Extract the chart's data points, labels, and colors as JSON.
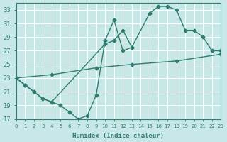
{
  "xlabel": "Humidex (Indice chaleur)",
  "xlim": [
    0,
    23
  ],
  "ylim": [
    17,
    34
  ],
  "yticks": [
    17,
    19,
    21,
    23,
    25,
    27,
    29,
    31,
    33
  ],
  "xticks": [
    0,
    1,
    2,
    3,
    4,
    5,
    6,
    7,
    8,
    9,
    10,
    11,
    12,
    13,
    14,
    15,
    16,
    17,
    18,
    19,
    20,
    21,
    22,
    23
  ],
  "bg_color": "#c8e8e8",
  "grid_color": "#ffffff",
  "line_color": "#2e7d6e",
  "line1_x": [
    0,
    1,
    2,
    3,
    4,
    5,
    6,
    7,
    8,
    9,
    10,
    11,
    12,
    13
  ],
  "line1_y": [
    23,
    22,
    21,
    20,
    19.5,
    19,
    18,
    17,
    17.5,
    20.5,
    28.5,
    31.5,
    27,
    27.5
  ],
  "line2_x": [
    0,
    1,
    2,
    3,
    4,
    10,
    11,
    12,
    13,
    15,
    16,
    17,
    18,
    19,
    20,
    21,
    22,
    23
  ],
  "line2_y": [
    23,
    22,
    21,
    20,
    19.5,
    28,
    28.5,
    30,
    27.5,
    32.5,
    33.5,
    33.5,
    33,
    30,
    30,
    29,
    27,
    27
  ],
  "line3_x": [
    0,
    4,
    9,
    13,
    18,
    23
  ],
  "line3_y": [
    23,
    23.5,
    24.5,
    25,
    25.5,
    26.5
  ],
  "marker": "D",
  "marker_size": 2.5,
  "line_width": 1.0
}
